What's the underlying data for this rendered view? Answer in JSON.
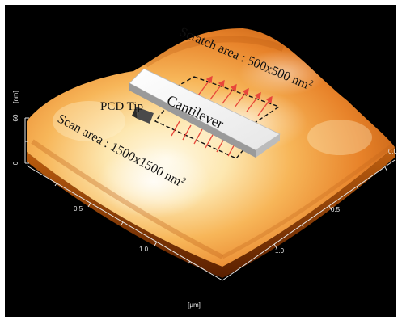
{
  "figure": {
    "annotations": {
      "scratch_area": "Scratch area : 500x500 nm",
      "scratch_area_sup": "2",
      "scan_area": "Scan area : 1500x1500 nm",
      "scan_area_sup": "2",
      "cantilever": "Cantilever",
      "pcd_tip": "PCD Tip"
    },
    "axes": {
      "z_unit": "[nm]",
      "z_ticks": [
        "60",
        "0"
      ],
      "left_axis_ticks": [
        "0.5",
        "1.0"
      ],
      "right_axis_ticks": [
        "0.0",
        "0.5",
        "1.0"
      ],
      "bottom_unit": "[µm]"
    },
    "colors": {
      "background": "#000000",
      "surface_highlight": "#fff6dc",
      "surface_mid": "#f5a030",
      "surface_dark": "#7a2a00",
      "arrow": "#e8473a",
      "dashed_box": "#111111"
    }
  }
}
